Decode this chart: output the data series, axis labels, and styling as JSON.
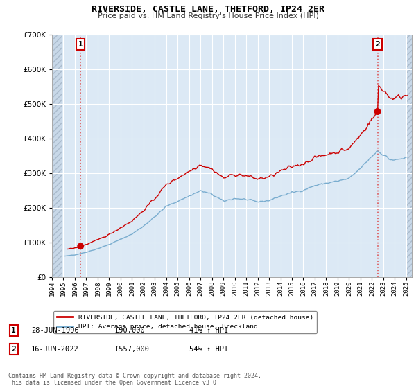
{
  "title": "RIVERSIDE, CASTLE LANE, THETFORD, IP24 2ER",
  "subtitle": "Price paid vs. HM Land Registry's House Price Index (HPI)",
  "legend_line1": "RIVERSIDE, CASTLE LANE, THETFORD, IP24 2ER (detached house)",
  "legend_line2": "HPI: Average price, detached house, Breckland",
  "annotation1_date": "28-JUN-1996",
  "annotation1_price": "£90,000",
  "annotation1_hpi": "41% ↑ HPI",
  "annotation2_date": "16-JUN-2022",
  "annotation2_price": "£557,000",
  "annotation2_hpi": "54% ↑ HPI",
  "footnote": "Contains HM Land Registry data © Crown copyright and database right 2024.\nThis data is licensed under the Open Government Licence v3.0.",
  "hpi_color": "#7aadcf",
  "price_color": "#cc0000",
  "dashed_color": "#dd4444",
  "marker_color": "#cc0000",
  "annotation_box_color": "#cc0000",
  "ylim_max": 700000,
  "ylim_min": 0,
  "background_color": "#ffffff",
  "plot_bg_color": "#dce9f5",
  "hatch_bg_color": "#c8d8e8",
  "grid_color": "#ffffff",
  "t1": 1996.5,
  "t2": 2022.5,
  "sale1_price": 90000,
  "sale2_price": 557000
}
